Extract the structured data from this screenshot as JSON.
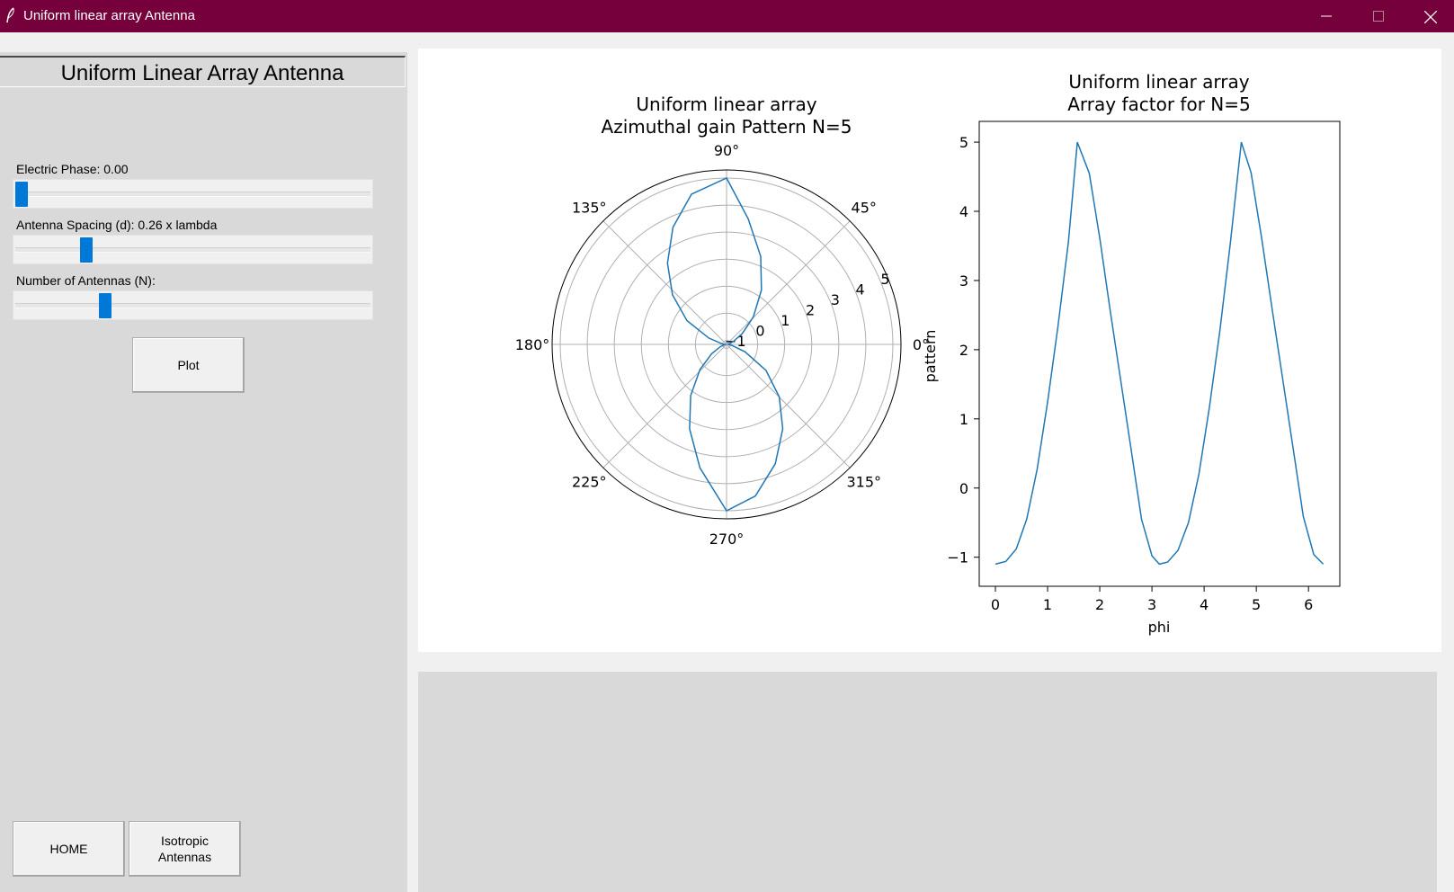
{
  "window": {
    "title": "Uniform linear array Antenna"
  },
  "left_panel": {
    "header": "Uniform Linear Array Antenna",
    "sliders": [
      {
        "label": "Electric Phase: 0.00",
        "value_fraction": 0.0
      },
      {
        "label": "Antenna Spacing (d): 0.26 x lambda",
        "value_fraction": 0.19
      },
      {
        "label": "Number of Antennas (N):",
        "value_fraction": 0.245
      }
    ],
    "plot_button": "Plot",
    "home_button": "HOME",
    "isotropic_button_line1": "Isotropic",
    "isotropic_button_line2": "Antennas"
  },
  "colors": {
    "titlebar": "#76003b",
    "series": "#1f77b4",
    "slider_thumb": "#0078d7"
  },
  "chart_data": [
    {
      "type": "line",
      "projection": "polar",
      "title": "Uniform linear array\nAzimuthal gain Pattern N=5",
      "title_line1": "Uniform linear array",
      "title_line2": "Azimuthal gain Pattern N=5",
      "angle_ticks": [
        "0°",
        "45°",
        "90°",
        "135°",
        "180°",
        "225°",
        "270°",
        "315°"
      ],
      "radial_ticks": [
        "−1",
        "0",
        "1",
        "2",
        "3",
        "4",
        "5"
      ],
      "rlim": [
        -1.15,
        5.3
      ],
      "grid": true,
      "series": [
        {
          "phi": [
            0,
            0.2,
            0.4,
            0.6,
            0.8,
            1.0,
            1.2,
            1.4,
            1.5708,
            1.8,
            2.0,
            2.2,
            2.4,
            2.6,
            2.8,
            3.0,
            3.1416,
            3.3,
            3.5,
            3.7,
            3.9,
            4.1,
            4.3,
            4.5,
            4.7124,
            4.9,
            5.1,
            5.3,
            5.5,
            5.7,
            5.9,
            6.1,
            6.2832
          ],
          "r": [
            -1.1,
            -1.06,
            -0.88,
            -0.45,
            0.27,
            1.24,
            2.34,
            3.56,
            5.0,
            4.55,
            3.61,
            2.56,
            1.56,
            0.56,
            -0.45,
            -0.98,
            -1.1,
            -1.07,
            -0.9,
            -0.5,
            0.2,
            1.16,
            2.26,
            3.52,
            5.0,
            4.56,
            3.62,
            2.6,
            1.6,
            0.6,
            -0.41,
            -0.96,
            -1.1
          ]
        }
      ]
    },
    {
      "type": "line",
      "title": "Uniform linear array\nArray factor for N=5",
      "title_line1": "Uniform linear array",
      "title_line2": "Array factor for N=5",
      "xlabel": "phi",
      "ylabel": "pattern",
      "xlim": [
        -0.31,
        6.6
      ],
      "ylim": [
        -1.42,
        5.3
      ],
      "xticks": [
        0,
        1,
        2,
        3,
        4,
        5,
        6
      ],
      "yticks": [
        -1,
        0,
        1,
        2,
        3,
        4,
        5
      ],
      "xtick_labels": [
        "0",
        "1",
        "2",
        "3",
        "4",
        "5",
        "6"
      ],
      "ytick_labels": [
        "−1",
        "0",
        "1",
        "2",
        "3",
        "4",
        "5"
      ],
      "series": [
        {
          "x": [
            0,
            0.2,
            0.4,
            0.6,
            0.8,
            1.0,
            1.2,
            1.4,
            1.5708,
            1.8,
            2.0,
            2.2,
            2.4,
            2.6,
            2.8,
            3.0,
            3.1416,
            3.3,
            3.5,
            3.7,
            3.9,
            4.1,
            4.3,
            4.5,
            4.7124,
            4.9,
            5.1,
            5.3,
            5.5,
            5.7,
            5.9,
            6.1,
            6.2832
          ],
          "y": [
            -1.1,
            -1.06,
            -0.88,
            -0.45,
            0.27,
            1.24,
            2.34,
            3.56,
            5.0,
            4.55,
            3.61,
            2.56,
            1.56,
            0.56,
            -0.45,
            -0.98,
            -1.1,
            -1.07,
            -0.9,
            -0.5,
            0.2,
            1.16,
            2.26,
            3.52,
            5.0,
            4.56,
            3.62,
            2.6,
            1.6,
            0.6,
            -0.41,
            -0.96,
            -1.1
          ]
        }
      ]
    }
  ]
}
